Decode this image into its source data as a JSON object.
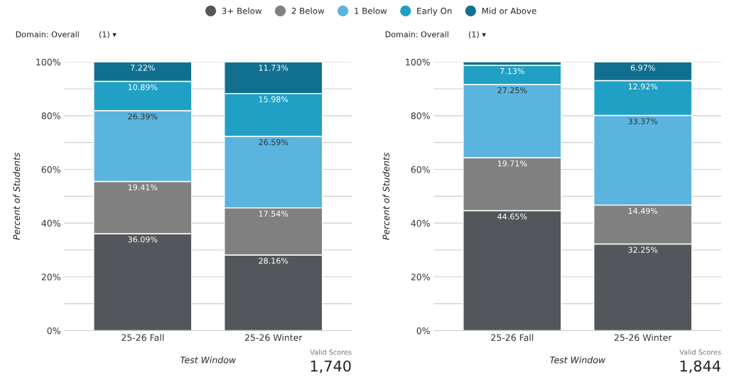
{
  "chart_data": [
    {
      "type": "bar",
      "stacked": true,
      "xlabel": "Test Window",
      "ylabel": "Percent of Students",
      "categories": [
        "25-26 Fall",
        "25-26 Winter"
      ],
      "ylim": [
        0,
        100
      ],
      "yticks": [
        {
          "value": 0,
          "label": "0%"
        },
        {
          "value": 10,
          "label": null
        },
        {
          "value": 20,
          "label": "20%"
        },
        {
          "value": 30,
          "label": null
        },
        {
          "value": 40,
          "label": "40%"
        },
        {
          "value": 50,
          "label": null
        },
        {
          "value": 60,
          "label": "60%"
        },
        {
          "value": 70,
          "label": null
        },
        {
          "value": 80,
          "label": "80%"
        },
        {
          "value": 90,
          "label": null
        },
        {
          "value": 100,
          "label": "100%"
        }
      ],
      "grid": "y",
      "legend": "top",
      "annotations": [
        "Domain: Overall",
        "(1) ▾",
        "Valid Scores",
        "1,740"
      ],
      "series": [
        {
          "name": "3+ Below",
          "color": "#53575b",
          "values": [
            36.09,
            28.16
          ],
          "value_labels": [
            "36.09%",
            "28.16%"
          ]
        },
        {
          "name": "2 Below",
          "color": "#808080",
          "values": [
            19.41,
            17.54
          ],
          "value_labels": [
            "19.41%",
            "17.54%"
          ]
        },
        {
          "name": "1 Below",
          "color": "#5ab4de",
          "values": [
            26.39,
            26.59
          ],
          "value_labels": [
            "26.39%",
            "26.59%"
          ]
        },
        {
          "name": "Early On",
          "color": "#1fa0c4",
          "values": [
            10.89,
            15.98
          ],
          "value_labels": [
            "10.89%",
            "15.98%"
          ]
        },
        {
          "name": "Mid or Above",
          "color": "#11708f",
          "values": [
            7.22,
            11.73
          ],
          "value_labels": [
            "7.22%",
            "11.73%"
          ]
        }
      ]
    },
    {
      "type": "bar",
      "stacked": true,
      "xlabel": "Test Window",
      "ylabel": "Percent of Students",
      "categories": [
        "25-26 Fall",
        "25-26 Winter"
      ],
      "ylim": [
        0,
        100
      ],
      "yticks": [
        {
          "value": 0,
          "label": "0%"
        },
        {
          "value": 10,
          "label": null
        },
        {
          "value": 20,
          "label": "20%"
        },
        {
          "value": 30,
          "label": null
        },
        {
          "value": 40,
          "label": "40%"
        },
        {
          "value": 50,
          "label": null
        },
        {
          "value": 60,
          "label": "60%"
        },
        {
          "value": 70,
          "label": null
        },
        {
          "value": 80,
          "label": "80%"
        },
        {
          "value": 90,
          "label": null
        },
        {
          "value": 100,
          "label": "100%"
        }
      ],
      "grid": "y",
      "legend": "top",
      "annotations": [
        "Domain: Overall",
        "(1) ▾",
        "Valid Scores",
        "1,844"
      ],
      "series": [
        {
          "name": "3+ Below",
          "color": "#53575b",
          "values": [
            44.65,
            32.25
          ],
          "value_labels": [
            "44.65%",
            "32.25%"
          ]
        },
        {
          "name": "2 Below",
          "color": "#808080",
          "values": [
            19.71,
            14.49
          ],
          "value_labels": [
            "19.71%",
            "14.49%"
          ]
        },
        {
          "name": "1 Below",
          "color": "#5ab4de",
          "values": [
            27.25,
            33.37
          ],
          "value_labels": [
            "27.25%",
            "33.37%"
          ]
        },
        {
          "name": "Early On",
          "color": "#1fa0c4",
          "values": [
            7.13,
            12.92
          ],
          "value_labels": [
            "7.13%",
            "12.92%"
          ]
        },
        {
          "name": "Mid or Above",
          "color": "#11708f",
          "values": [
            1.3,
            6.97
          ],
          "value_labels": [
            null,
            "6.97%"
          ]
        }
      ]
    }
  ]
}
